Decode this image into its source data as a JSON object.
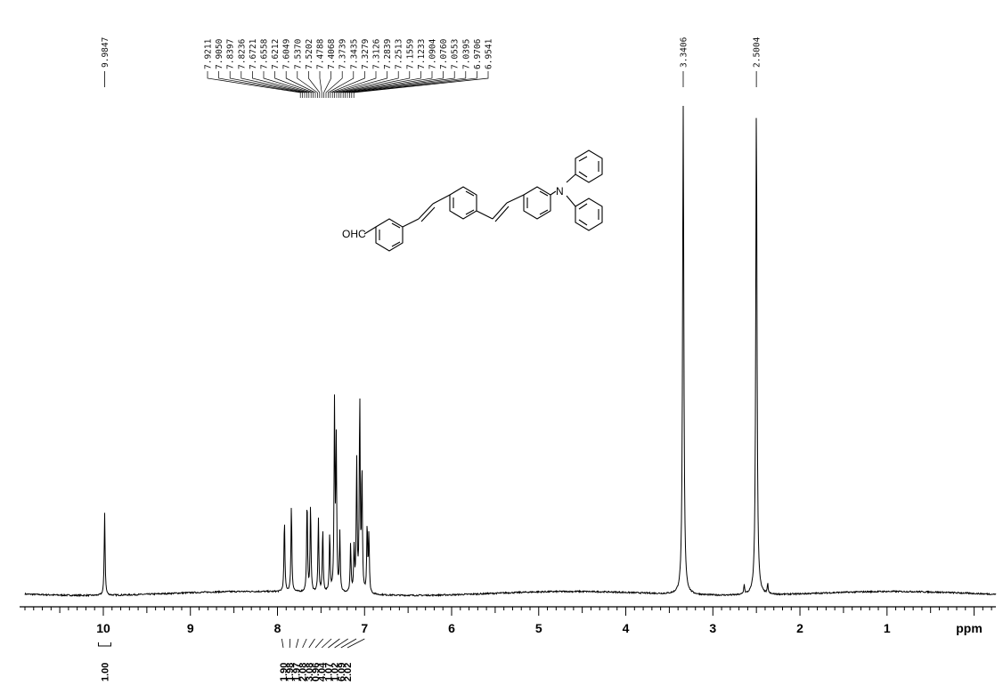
{
  "chart_data": {
    "type": "line",
    "title": "",
    "xlabel": "ppm",
    "ylabel": "",
    "x_reversed": true,
    "xlim": [
      10.9,
      -0.25
    ],
    "ylim": [
      0,
      1
    ],
    "grid": false,
    "x_ticks": [
      "10",
      "9",
      "8",
      "7",
      "6",
      "5",
      "4",
      "3",
      "2",
      "1"
    ],
    "x_unit_label": "ppm",
    "peaks": [
      {
        "ppm": 9.9847,
        "height": 0.17
      },
      {
        "ppm": 7.92,
        "height": 0.15
      },
      {
        "ppm": 7.84,
        "height": 0.18
      },
      {
        "ppm": 7.66,
        "height": 0.19
      },
      {
        "ppm": 7.62,
        "height": 0.18
      },
      {
        "ppm": 7.53,
        "height": 0.15
      },
      {
        "ppm": 7.48,
        "height": 0.13
      },
      {
        "ppm": 7.4,
        "height": 0.12
      },
      {
        "ppm": 7.345,
        "height": 0.38
      },
      {
        "ppm": 7.325,
        "height": 0.3
      },
      {
        "ppm": 7.2839,
        "height": 0.12
      },
      {
        "ppm": 7.16,
        "height": 0.1
      },
      {
        "ppm": 7.12,
        "height": 0.09
      },
      {
        "ppm": 7.0904,
        "height": 0.27
      },
      {
        "ppm": 7.0553,
        "height": 0.4
      },
      {
        "ppm": 7.03,
        "height": 0.25
      },
      {
        "ppm": 6.97,
        "height": 0.14
      },
      {
        "ppm": 6.95,
        "height": 0.12
      },
      {
        "ppm": 3.3406,
        "height": 1.0
      },
      {
        "ppm": 2.64,
        "height": 0.02
      },
      {
        "ppm": 2.5004,
        "height": 1.0
      },
      {
        "ppm": 2.37,
        "height": 0.02
      }
    ],
    "peak_labels": {
      "single_left": [
        "9.9847"
      ],
      "aromatic_cluster": [
        "7.9211",
        "7.9050",
        "7.8397",
        "7.8236",
        "7.6721",
        "7.6558",
        "7.6212",
        "7.6049",
        "7.5370",
        "7.5202",
        "7.4788",
        "7.4068",
        "7.3739",
        "7.3435",
        "7.3279",
        "7.3126",
        "7.2839",
        "7.2513",
        "7.1559",
        "7.1233",
        "7.0904",
        "7.0760",
        "7.0553",
        "7.0395",
        "6.9706",
        "6.9541"
      ],
      "single_right": [
        "3.3406",
        "2.5004"
      ]
    },
    "integrals": {
      "left": [
        "1.00"
      ],
      "cluster": [
        "1.90",
        "1.98",
        "1.97",
        "2.08",
        "3.08",
        "0.96",
        "4.04",
        "1.07",
        "1.02",
        "6.09",
        "2.02"
      ]
    },
    "annotations": {
      "structure_labels": {
        "aldehyde": "OHC",
        "nitrogen": "N"
      }
    }
  }
}
